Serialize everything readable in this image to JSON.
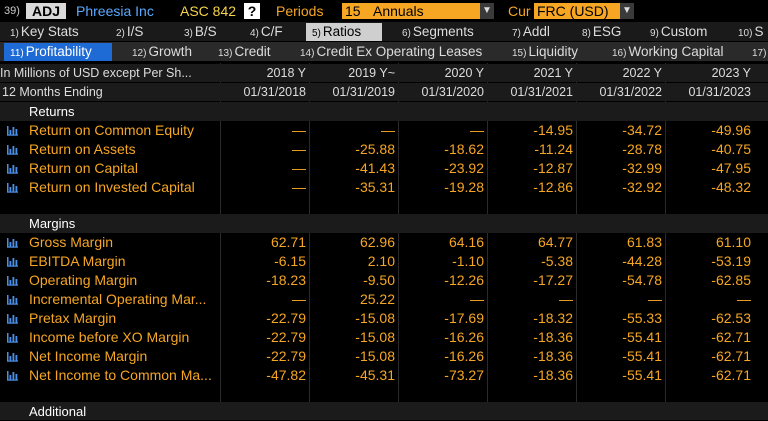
{
  "topbar": {
    "tag_number": "39)",
    "adj_label": "ADJ",
    "company": "Phreesia Inc",
    "standard": "ASC 842",
    "help": "?",
    "periods_label": "Periods",
    "periods_value": "15",
    "period_type": "Annuals",
    "cur_label": "Cur",
    "currency": "FRC (USD)"
  },
  "main_tabs": [
    {
      "num": "1)",
      "label": "Key Stats"
    },
    {
      "num": "2)",
      "label": "I/S"
    },
    {
      "num": "3)",
      "label": "B/S"
    },
    {
      "num": "4)",
      "label": "C/F"
    },
    {
      "num": "5)",
      "label": "Ratios"
    },
    {
      "num": "6)",
      "label": "Segments"
    },
    {
      "num": "7)",
      "label": "Addl"
    },
    {
      "num": "8)",
      "label": "ESG"
    },
    {
      "num": "9)",
      "label": "Custom"
    },
    {
      "num": "10)",
      "label": "S"
    }
  ],
  "sub_tabs": [
    {
      "num": "11)",
      "label": "Profitability"
    },
    {
      "num": "12)",
      "label": "Growth"
    },
    {
      "num": "13)",
      "label": "Credit"
    },
    {
      "num": "14)",
      "label": "Credit Ex Operating Leases"
    },
    {
      "num": "15)",
      "label": "Liquidity"
    },
    {
      "num": "16)",
      "label": "Working Capital"
    },
    {
      "num": "17)",
      "label": ""
    }
  ],
  "header": {
    "units": "In Millions of USD except Per Sh...",
    "period_label": "12 Months Ending",
    "years": [
      "2018 Y",
      "2019 Y~",
      "2020 Y",
      "2021 Y",
      "2022 Y",
      "2023 Y"
    ],
    "dates": [
      "01/31/2018",
      "01/31/2019",
      "01/31/2020",
      "01/31/2021",
      "01/31/2022",
      "01/31/2023"
    ]
  },
  "sections": {
    "returns": "Returns",
    "margins": "Margins",
    "additional": "Additional"
  },
  "returns_rows": [
    {
      "name": "Return on Common Equity",
      "values": [
        "—",
        "—",
        "—",
        "-14.95",
        "-34.72",
        "-49.96"
      ]
    },
    {
      "name": "Return on Assets",
      "values": [
        "—",
        "-25.88",
        "-18.62",
        "-11.24",
        "-28.78",
        "-40.75"
      ]
    },
    {
      "name": "Return on Capital",
      "values": [
        "—",
        "-41.43",
        "-23.92",
        "-12.87",
        "-32.99",
        "-47.95"
      ]
    },
    {
      "name": "Return on Invested Capital",
      "values": [
        "—",
        "-35.31",
        "-19.28",
        "-12.86",
        "-32.92",
        "-48.32"
      ]
    }
  ],
  "margin_rows": [
    {
      "name": "Gross Margin",
      "values": [
        "62.71",
        "62.96",
        "64.16",
        "64.77",
        "61.83",
        "61.10"
      ]
    },
    {
      "name": "EBITDA Margin",
      "values": [
        "-6.15",
        "2.10",
        "-1.10",
        "-5.38",
        "-44.28",
        "-53.19"
      ]
    },
    {
      "name": "Operating Margin",
      "values": [
        "-18.23",
        "-9.50",
        "-12.26",
        "-17.27",
        "-54.78",
        "-62.85"
      ]
    },
    {
      "name": "Incremental Operating Mar...",
      "values": [
        "—",
        "25.22",
        "—",
        "—",
        "—",
        "—"
      ]
    },
    {
      "name": "Pretax Margin",
      "values": [
        "-22.79",
        "-15.08",
        "-17.69",
        "-18.32",
        "-55.33",
        "-62.53"
      ]
    },
    {
      "name": "Income before XO Margin",
      "values": [
        "-22.79",
        "-15.08",
        "-16.26",
        "-18.36",
        "-55.41",
        "-62.71"
      ]
    },
    {
      "name": "Net Income Margin",
      "values": [
        "-22.79",
        "-15.08",
        "-16.26",
        "-18.36",
        "-55.41",
        "-62.71"
      ]
    },
    {
      "name": "Net Income to Common Ma...",
      "values": [
        "-47.82",
        "-45.31",
        "-73.27",
        "-18.36",
        "-55.41",
        "-62.71"
      ]
    }
  ],
  "colors": {
    "accent_orange": "#f6a623",
    "company_blue": "#5aa9ff",
    "active_subtab": "#1e6bd6"
  }
}
